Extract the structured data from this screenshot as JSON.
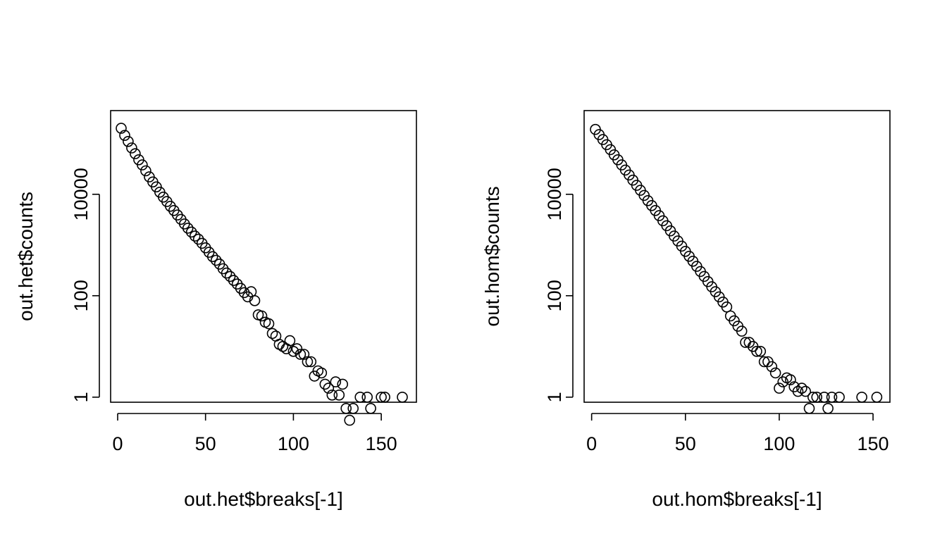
{
  "chart_data": [
    {
      "type": "scatter",
      "xlabel": "out.het$breaks[-1]",
      "ylabel": "out.het$counts",
      "log_y": true,
      "grid": false,
      "xlim": [
        -4,
        170
      ],
      "ylim_log10": [
        -0.1,
        5.65
      ],
      "x_ticks": [
        0,
        50,
        100,
        150
      ],
      "x_tick_labels": [
        "0",
        "50",
        "100",
        "150"
      ],
      "y_ticks": [
        1,
        100,
        10000
      ],
      "y_tick_labels": [
        "1",
        "100",
        "10000"
      ],
      "points": [
        [
          2,
          200000
        ],
        [
          4,
          145000
        ],
        [
          6,
          110000
        ],
        [
          8,
          82000
        ],
        [
          10,
          63000
        ],
        [
          12,
          48000
        ],
        [
          14,
          38000
        ],
        [
          16,
          29000
        ],
        [
          18,
          22000
        ],
        [
          20,
          17500
        ],
        [
          22,
          14000
        ],
        [
          24,
          11000
        ],
        [
          26,
          8800
        ],
        [
          28,
          7200
        ],
        [
          30,
          5800
        ],
        [
          32,
          4800
        ],
        [
          34,
          3900
        ],
        [
          36,
          3200
        ],
        [
          38,
          2600
        ],
        [
          40,
          2150
        ],
        [
          42,
          1800
        ],
        [
          44,
          1500
        ],
        [
          46,
          1300
        ],
        [
          48,
          1080
        ],
        [
          50,
          880
        ],
        [
          52,
          720
        ],
        [
          54,
          590
        ],
        [
          56,
          500
        ],
        [
          58,
          420
        ],
        [
          60,
          340
        ],
        [
          62,
          280
        ],
        [
          64,
          240
        ],
        [
          66,
          200
        ],
        [
          68,
          170
        ],
        [
          70,
          140
        ],
        [
          72,
          115
        ],
        [
          74,
          95
        ],
        [
          76,
          120
        ],
        [
          78,
          80
        ],
        [
          80,
          42
        ],
        [
          82,
          40
        ],
        [
          84,
          30
        ],
        [
          86,
          28
        ],
        [
          88,
          18
        ],
        [
          90,
          16
        ],
        [
          92,
          11
        ],
        [
          94,
          10
        ],
        [
          96,
          9
        ],
        [
          98,
          13
        ],
        [
          100,
          8
        ],
        [
          102,
          9
        ],
        [
          104,
          7
        ],
        [
          106,
          7
        ],
        [
          108,
          5
        ],
        [
          110,
          5
        ],
        [
          112,
          2.6
        ],
        [
          114,
          3.3
        ],
        [
          116,
          3
        ],
        [
          118,
          1.8
        ],
        [
          120,
          1.5
        ],
        [
          122,
          1.1
        ],
        [
          124,
          2
        ],
        [
          126,
          1.1
        ],
        [
          128,
          1.8
        ],
        [
          130,
          0.6
        ],
        [
          132,
          0.35
        ],
        [
          134,
          0.6
        ],
        [
          138,
          0
        ],
        [
          142,
          0
        ],
        [
          144,
          0.6
        ],
        [
          150,
          0
        ],
        [
          152,
          0
        ],
        [
          162,
          0
        ]
      ]
    },
    {
      "type": "scatter",
      "xlabel": "out.hom$breaks[-1]",
      "ylabel": "out.hom$counts",
      "log_y": true,
      "grid": false,
      "xlim": [
        -4,
        159
      ],
      "ylim_log10": [
        -0.1,
        5.65
      ],
      "x_ticks": [
        0,
        50,
        100,
        150
      ],
      "x_tick_labels": [
        "0",
        "50",
        "100",
        "150"
      ],
      "y_ticks": [
        1,
        100,
        10000
      ],
      "y_tick_labels": [
        "1",
        "100",
        "10000"
      ],
      "points": [
        [
          2,
          190000
        ],
        [
          4,
          150000
        ],
        [
          6,
          120000
        ],
        [
          8,
          95000
        ],
        [
          10,
          76000
        ],
        [
          12,
          60000
        ],
        [
          14,
          48000
        ],
        [
          16,
          38000
        ],
        [
          18,
          30000
        ],
        [
          20,
          24000
        ],
        [
          22,
          19000
        ],
        [
          24,
          15000
        ],
        [
          26,
          12000
        ],
        [
          28,
          9500
        ],
        [
          30,
          7500
        ],
        [
          32,
          6000
        ],
        [
          34,
          4800
        ],
        [
          36,
          3800
        ],
        [
          38,
          3000
        ],
        [
          40,
          2400
        ],
        [
          42,
          1900
        ],
        [
          44,
          1500
        ],
        [
          46,
          1200
        ],
        [
          48,
          950
        ],
        [
          50,
          750
        ],
        [
          52,
          600
        ],
        [
          54,
          480
        ],
        [
          56,
          380
        ],
        [
          58,
          300
        ],
        [
          60,
          240
        ],
        [
          62,
          190
        ],
        [
          64,
          150
        ],
        [
          66,
          120
        ],
        [
          68,
          95
        ],
        [
          70,
          75
        ],
        [
          72,
          60
        ],
        [
          74,
          40
        ],
        [
          76,
          32
        ],
        [
          78,
          25
        ],
        [
          80,
          20
        ],
        [
          82,
          12
        ],
        [
          84,
          12
        ],
        [
          86,
          10
        ],
        [
          88,
          8
        ],
        [
          90,
          8
        ],
        [
          92,
          5
        ],
        [
          94,
          5
        ],
        [
          96,
          4
        ],
        [
          98,
          3
        ],
        [
          100,
          1.5
        ],
        [
          102,
          2
        ],
        [
          104,
          2.4
        ],
        [
          106,
          2.2
        ],
        [
          108,
          1.6
        ],
        [
          110,
          1.3
        ],
        [
          112,
          1.5
        ],
        [
          114,
          1.3
        ],
        [
          116,
          0.6
        ],
        [
          118,
          0
        ],
        [
          120,
          0
        ],
        [
          124,
          0
        ],
        [
          126,
          0.6
        ],
        [
          128,
          0
        ],
        [
          132,
          0
        ],
        [
          144,
          0
        ],
        [
          152,
          0
        ]
      ]
    }
  ]
}
